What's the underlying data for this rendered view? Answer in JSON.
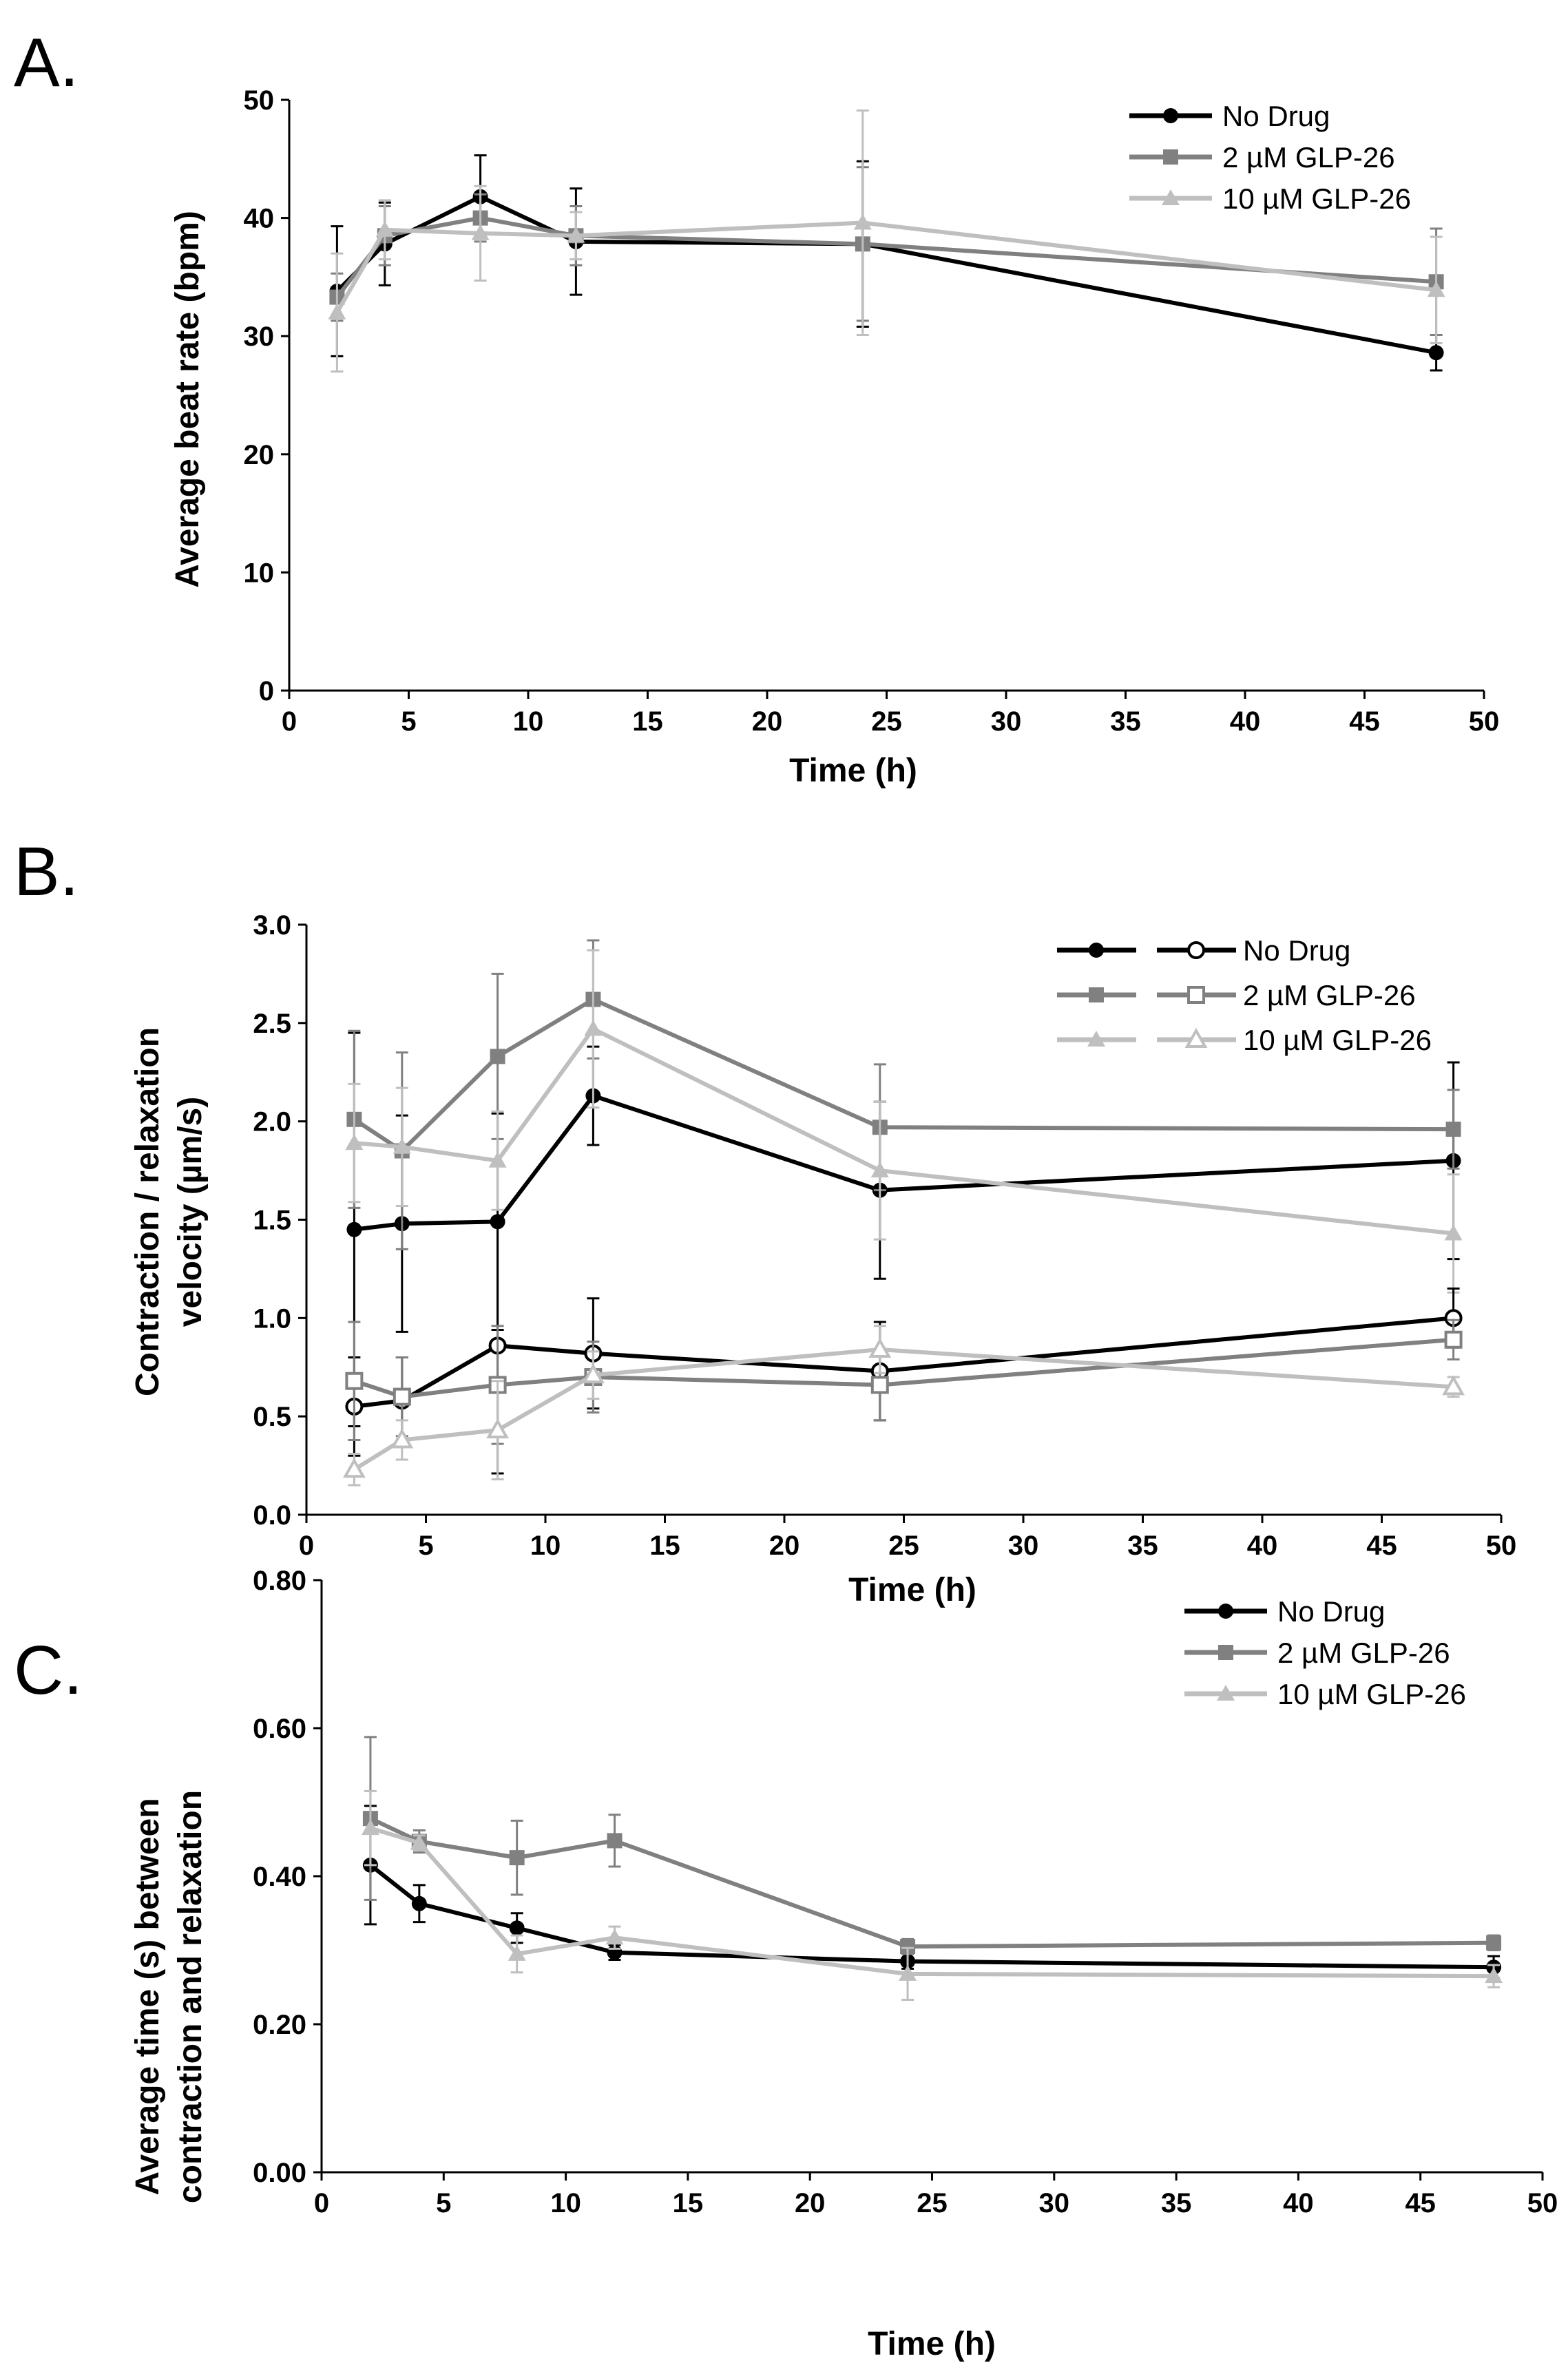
{
  "colors": {
    "no_drug": "#000000",
    "glp_2": "#808080",
    "glp_10": "#bfbfbf"
  },
  "chart_data": [
    {
      "panel": "A.",
      "type": "line",
      "xlabel": "Time (h)",
      "ylabel": "Average beat rate (bpm)",
      "xlim": [
        0,
        50
      ],
      "ylim": [
        0,
        50
      ],
      "x_ticks": [
        "0",
        "5",
        "10",
        "15",
        "20",
        "25",
        "30",
        "35",
        "40",
        "45",
        "50"
      ],
      "y_ticks": [
        "0",
        "10",
        "20",
        "30",
        "40",
        "50"
      ],
      "legend": "top-right",
      "series": [
        {
          "name": "No Drug",
          "key": "no_drug",
          "marker": "circle",
          "filled": true,
          "x": [
            2,
            4,
            8,
            12,
            24,
            48
          ],
          "values": [
            33.8,
            37.8,
            41.8,
            38.0,
            37.8,
            28.6
          ],
          "err": [
            5.5,
            3.5,
            3.5,
            4.5,
            7.0,
            1.5
          ]
        },
        {
          "name": "2 µM GLP-26",
          "key": "glp_2",
          "marker": "square",
          "filled": true,
          "x": [
            2,
            4,
            8,
            12,
            24,
            48
          ],
          "values": [
            33.3,
            38.5,
            40.0,
            38.5,
            37.8,
            34.6
          ],
          "err": [
            2.0,
            2.5,
            2.0,
            2.5,
            6.5,
            4.5
          ]
        },
        {
          "name": "10 µM GLP-26",
          "key": "glp_10",
          "marker": "triangle",
          "filled": true,
          "x": [
            2,
            4,
            8,
            12,
            24,
            48
          ],
          "values": [
            32.0,
            39.0,
            38.7,
            38.5,
            39.6,
            33.9
          ],
          "err": [
            5.0,
            2.5,
            4.0,
            2.0,
            9.5,
            4.5
          ]
        }
      ]
    },
    {
      "panel": "B.",
      "type": "line",
      "xlabel": "Time (h)",
      "ylabel_lines": [
        "Contraction / relaxation",
        "velocity (µm/s)"
      ],
      "xlim": [
        0,
        50
      ],
      "ylim": [
        0,
        3
      ],
      "x_ticks": [
        "0",
        "5",
        "10",
        "15",
        "20",
        "25",
        "30",
        "35",
        "40",
        "45",
        "50"
      ],
      "y_ticks": [
        "0.0",
        "0.5",
        "1.0",
        "1.5",
        "2.0",
        "2.5",
        "3.0"
      ],
      "legend": "top-right",
      "legend_entries": [
        "No Drug",
        "2 µM GLP-26",
        "10 µM GLP-26"
      ],
      "series": [
        {
          "name": "No Drug contraction",
          "key": "no_drug",
          "marker": "circle",
          "filled": true,
          "x": [
            2,
            4,
            8,
            12,
            24,
            48
          ],
          "values": [
            1.45,
            1.48,
            1.49,
            2.13,
            1.65,
            1.8
          ],
          "err": [
            1.0,
            0.55,
            0.55,
            0.25,
            0.45,
            0.5
          ]
        },
        {
          "name": "2 µM GLP-26 contraction",
          "key": "glp_2",
          "marker": "square",
          "filled": true,
          "x": [
            2,
            4,
            8,
            12,
            24,
            48
          ],
          "values": [
            2.01,
            1.85,
            2.33,
            2.62,
            1.97,
            1.96
          ],
          "err": [
            0.45,
            0.5,
            0.42,
            0.3,
            0.32,
            0.2
          ]
        },
        {
          "name": "10 µM GLP-26 contraction",
          "key": "glp_10",
          "marker": "triangle",
          "filled": true,
          "x": [
            2,
            4,
            8,
            12,
            24,
            48
          ],
          "values": [
            1.89,
            1.87,
            1.8,
            2.47,
            1.75,
            1.43
          ],
          "err": [
            0.3,
            0.3,
            0.25,
            0.4,
            0.35,
            0.3
          ]
        },
        {
          "name": "No Drug relaxation",
          "key": "no_drug",
          "marker": "circle",
          "filled": false,
          "x": [
            2,
            4,
            8,
            12,
            24,
            48
          ],
          "values": [
            0.55,
            0.58,
            0.86,
            0.82,
            0.73,
            1.0
          ],
          "err": [
            0.25,
            0.22,
            0.65,
            0.28,
            0.25,
            0.15
          ]
        },
        {
          "name": "2 µM GLP-26 relaxation",
          "key": "glp_2",
          "marker": "square",
          "filled": false,
          "x": [
            2,
            4,
            8,
            12,
            24,
            48
          ],
          "values": [
            0.68,
            0.6,
            0.66,
            0.7,
            0.66,
            0.89
          ],
          "err": [
            0.3,
            0.2,
            0.3,
            0.18,
            0.18,
            0.1
          ]
        },
        {
          "name": "10 µM GLP-26 relaxation",
          "key": "glp_10",
          "marker": "triangle",
          "filled": false,
          "x": [
            2,
            4,
            8,
            12,
            24,
            48
          ],
          "values": [
            0.23,
            0.38,
            0.43,
            0.71,
            0.84,
            0.65
          ],
          "err": [
            0.08,
            0.1,
            0.25,
            0.12,
            0.12,
            0.05
          ]
        }
      ]
    },
    {
      "panel": "C.",
      "type": "line",
      "xlabel": "Time (h)",
      "ylabel_lines": [
        "Average time (s) between",
        "contraction and relaxation"
      ],
      "xlim": [
        0,
        50
      ],
      "ylim": [
        0,
        0.8
      ],
      "x_ticks": [
        "0",
        "5",
        "10",
        "15",
        "20",
        "25",
        "30",
        "35",
        "40",
        "45",
        "50"
      ],
      "y_ticks": [
        "0.00",
        "0.20",
        "0.40",
        "0.60",
        "0.80"
      ],
      "legend": "top-right",
      "series": [
        {
          "name": "No Drug",
          "key": "no_drug",
          "marker": "circle",
          "filled": true,
          "x": [
            2,
            4,
            8,
            12,
            24,
            48
          ],
          "values": [
            0.415,
            0.363,
            0.33,
            0.297,
            0.285,
            0.277
          ],
          "err": [
            0.08,
            0.025,
            0.02,
            0.01,
            0.01,
            0.015
          ]
        },
        {
          "name": "2 µM GLP-26",
          "key": "glp_2",
          "marker": "square",
          "filled": true,
          "x": [
            2,
            4,
            8,
            12,
            24,
            48
          ],
          "values": [
            0.478,
            0.447,
            0.425,
            0.448,
            0.305,
            0.31
          ],
          "err": [
            0.11,
            0.015,
            0.05,
            0.035,
            0.01,
            0.01
          ]
        },
        {
          "name": "10 µM GLP-26",
          "key": "glp_10",
          "marker": "triangle",
          "filled": true,
          "x": [
            2,
            4,
            8,
            12,
            24,
            48
          ],
          "values": [
            0.465,
            0.445,
            0.295,
            0.317,
            0.268,
            0.265
          ],
          "err": [
            0.05,
            0.01,
            0.025,
            0.015,
            0.035,
            0.015
          ]
        }
      ]
    }
  ]
}
